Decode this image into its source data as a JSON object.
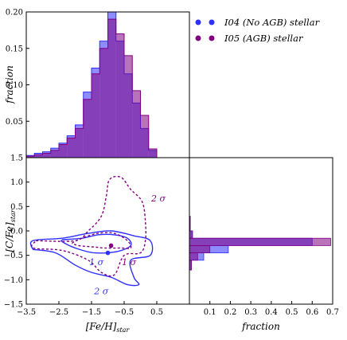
{
  "chart_data": [
    {
      "type": "histogram",
      "panel": "top",
      "xlabel": "",
      "ylabel": "fraction",
      "xlim": [
        -3.5,
        1.5
      ],
      "ylim": [
        0,
        0.2
      ],
      "yticks": [
        "0.05",
        "0.10",
        "0.15",
        "0.20"
      ],
      "bin_edges": [
        -3.5,
        -3.25,
        -3.0,
        -2.75,
        -2.5,
        -2.25,
        -2.0,
        -1.75,
        -1.5,
        -1.25,
        -1.0,
        -0.75,
        -0.5,
        -0.25,
        0.0,
        0.25,
        0.5,
        0.75
      ],
      "series": [
        {
          "name": "I04 (No AGB) stellar",
          "color": "#2f2fff",
          "values": [
            0.003,
            0.006,
            0.008,
            0.013,
            0.02,
            0.03,
            0.045,
            0.09,
            0.123,
            0.16,
            0.2,
            0.16,
            0.115,
            0.075,
            0.04,
            0.01,
            0.0
          ]
        },
        {
          "name": "I05 (AGB) stellar",
          "color": "#800080",
          "values": [
            0.002,
            0.004,
            0.006,
            0.01,
            0.018,
            0.027,
            0.04,
            0.08,
            0.115,
            0.15,
            0.19,
            0.17,
            0.14,
            0.092,
            0.058,
            0.012,
            0.0
          ]
        }
      ]
    },
    {
      "type": "contour",
      "panel": "main",
      "xlabel": "[Fe/H]_star",
      "ylabel": "[C/Fe]_star",
      "xlim": [
        -3.5,
        1.5
      ],
      "ylim": [
        -1.5,
        1.5
      ],
      "xticks": [
        "−3.5",
        "−2.5",
        "−1.5",
        "−0.5",
        "0.5"
      ],
      "yticks": [
        "−1.5",
        "−1.0",
        "−0.5",
        "0.0",
        "0.5",
        "1.0",
        "1.5"
      ],
      "medians": [
        {
          "series": "I04 (No AGB) stellar",
          "x": -1.0,
          "y": -0.45
        },
        {
          "series": "I05 (AGB) stellar",
          "x": -0.9,
          "y": -0.3
        }
      ],
      "contours": [
        {
          "series": "I04 (No AGB) stellar",
          "level": "1 σ",
          "dashed": false,
          "points": [
            [
              -2.4,
              -0.18
            ],
            [
              -1.8,
              -0.15
            ],
            [
              -1.3,
              -0.08
            ],
            [
              -0.8,
              -0.08
            ],
            [
              -0.4,
              -0.15
            ],
            [
              -0.3,
              -0.3
            ],
            [
              -0.7,
              -0.42
            ],
            [
              -1.4,
              -0.45
            ],
            [
              -2.0,
              -0.35
            ],
            [
              -2.4,
              -0.22
            ],
            [
              -2.4,
              -0.18
            ]
          ]
        },
        {
          "series": "I04 (No AGB) stellar",
          "level": "2 σ",
          "dashed": false,
          "points": [
            [
              -3.3,
              -0.38
            ],
            [
              -3.3,
              -0.2
            ],
            [
              -2.4,
              -0.15
            ],
            [
              -1.6,
              -0.05
            ],
            [
              -0.9,
              0.0
            ],
            [
              -0.2,
              -0.1
            ],
            [
              0.3,
              -0.2
            ],
            [
              0.3,
              -0.5
            ],
            [
              -0.3,
              -0.6
            ],
            [
              -0.2,
              -0.95
            ],
            [
              -0.05,
              -1.1
            ],
            [
              -0.4,
              -1.1
            ],
            [
              -0.9,
              -0.95
            ],
            [
              -1.5,
              -0.85
            ],
            [
              -2.0,
              -0.7
            ],
            [
              -2.6,
              -0.45
            ],
            [
              -3.3,
              -0.38
            ]
          ]
        },
        {
          "series": "I05 (AGB) stellar",
          "level": "1 σ",
          "dashed": true,
          "points": [
            [
              -2.1,
              -0.25
            ],
            [
              -1.8,
              -0.15
            ],
            [
              -1.3,
              -0.05
            ],
            [
              -0.8,
              -0.05
            ],
            [
              -0.4,
              -0.2
            ],
            [
              -0.3,
              -0.35
            ],
            [
              -0.6,
              -0.35
            ],
            [
              -1.1,
              -0.35
            ],
            [
              -1.4,
              -0.33
            ],
            [
              -1.9,
              -0.3
            ],
            [
              -2.1,
              -0.25
            ]
          ]
        },
        {
          "series": "I05 (AGB) stellar",
          "level": "2 σ",
          "dashed": true,
          "points": [
            [
              -3.2,
              -0.2
            ],
            [
              -2.0,
              -0.2
            ],
            [
              -1.6,
              0.0
            ],
            [
              -1.2,
              0.3
            ],
            [
              -1.05,
              0.7
            ],
            [
              -0.95,
              1.05
            ],
            [
              -0.6,
              1.1
            ],
            [
              -0.3,
              0.85
            ],
            [
              0.05,
              0.6
            ],
            [
              0.15,
              0.2
            ],
            [
              0.15,
              -0.2
            ],
            [
              0.0,
              -0.45
            ],
            [
              -0.5,
              -0.5
            ],
            [
              -0.8,
              -0.9
            ],
            [
              -1.2,
              -0.85
            ],
            [
              -1.6,
              -0.6
            ],
            [
              -2.4,
              -0.4
            ],
            [
              -3.3,
              -0.35
            ],
            [
              -3.2,
              -0.2
            ]
          ]
        }
      ],
      "labels": [
        {
          "text": "2 σ",
          "series": "I05 (AGB) stellar",
          "x": 0.55,
          "y": 0.6
        },
        {
          "text": "1 σ",
          "series": "I04 (No AGB) stellar",
          "x": -1.35,
          "y": -0.7
        },
        {
          "text": "1 σ",
          "series": "I05 (AGB) stellar",
          "x": -0.35,
          "y": -0.7
        },
        {
          "text": "2 σ",
          "series": "I04 (No AGB) stellar",
          "x": -1.2,
          "y": -1.3
        }
      ]
    },
    {
      "type": "histogram",
      "orientation": "horizontal",
      "panel": "right",
      "xlabel": "fraction",
      "xlim": [
        0,
        0.7
      ],
      "ylim": [
        -1.5,
        1.5
      ],
      "xticks": [
        "0.1",
        "0.2",
        "0.3",
        "0.4",
        "0.5",
        "0.6",
        "0.7"
      ],
      "bin_edges": [
        -0.8,
        -0.6,
        -0.45,
        -0.3,
        -0.15,
        0.0,
        0.3
      ],
      "series": [
        {
          "name": "I04 (No AGB) stellar",
          "color": "#2f2fff",
          "values": [
            0.01,
            0.07,
            0.19,
            0.6,
            0.015,
            0.004
          ]
        },
        {
          "name": "I05 (AGB) stellar",
          "color": "#800080",
          "values": [
            0.01,
            0.04,
            0.1,
            0.69,
            0.015,
            0.004
          ]
        }
      ]
    }
  ],
  "legend": [
    {
      "label": "I04 (No AGB) stellar",
      "color": "#2f2fff"
    },
    {
      "label": "I05 (AGB) stellar",
      "color": "#800080"
    }
  ]
}
